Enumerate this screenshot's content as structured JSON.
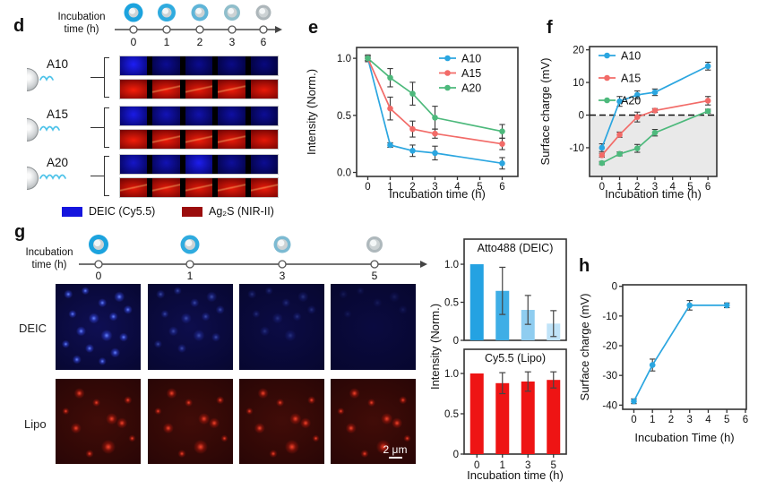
{
  "figure": {
    "panel_labels": {
      "d": "d",
      "e": "e",
      "f": "f",
      "g": "g",
      "h": "h"
    }
  },
  "panel_d": {
    "timeline_title_line1": "Incubation",
    "timeline_title_line2": "time (h)",
    "timeline_ticks": [
      "0",
      "1",
      "2",
      "3",
      "6"
    ],
    "groups": [
      "A10",
      "A15",
      "A20"
    ],
    "legend": [
      {
        "label": "DEIC (Cy5.5)",
        "color": "#1515DE"
      },
      {
        "label": "Ag₂S (NIR-II)",
        "color": "#9B0D0D"
      }
    ]
  },
  "panel_g": {
    "timeline_title_line1": "Incubation",
    "timeline_title_line2": "time (h)",
    "timeline_ticks": [
      "0",
      "1",
      "3",
      "5"
    ],
    "row_labels": [
      "DEIC",
      "Lipo"
    ],
    "scale_bar": "2 μm"
  },
  "chart_data": [
    {
      "id": "e",
      "type": "line",
      "xlabel": "Incubation time (h)",
      "ylabel": "Intensity (Norm.)",
      "x": [
        0,
        1,
        2,
        3,
        6
      ],
      "xticks": [
        0,
        1,
        2,
        3,
        4,
        5,
        6
      ],
      "xlim": [
        -0.5,
        6.7
      ],
      "ylim": [
        -0.035,
        1.095
      ],
      "yticks": [
        0,
        0.5,
        1
      ],
      "ytick_labels": [
        "0.0",
        "0.5",
        "1.0"
      ],
      "legend_position": "top-right",
      "series": [
        {
          "name": "A10",
          "color": "#2BA6E0",
          "values": [
            1.0,
            0.24,
            0.19,
            0.17,
            0.08
          ],
          "errors": [
            0.03,
            0.02,
            0.05,
            0.06,
            0.05
          ]
        },
        {
          "name": "A15",
          "color": "#F26B68",
          "values": [
            1.0,
            0.56,
            0.38,
            0.34,
            0.25
          ],
          "errors": [
            0.02,
            0.1,
            0.07,
            0.04,
            0.05
          ]
        },
        {
          "name": "A20",
          "color": "#4DB97C",
          "values": [
            1.0,
            0.83,
            0.69,
            0.48,
            0.36
          ],
          "errors": [
            0.02,
            0.08,
            0.1,
            0.1,
            0.06
          ]
        }
      ]
    },
    {
      "id": "f",
      "type": "line",
      "xlabel": "Incubation time (h)",
      "ylabel": "Surface charge (mV)",
      "x": [
        0,
        1,
        2,
        3,
        6
      ],
      "xticks": [
        0,
        1,
        2,
        3,
        4,
        5,
        6
      ],
      "xlim": [
        -0.7,
        6.5
      ],
      "ylim": [
        -18.8,
        21
      ],
      "yticks": [
        -10,
        0,
        10,
        20
      ],
      "zero_line": true,
      "shade_below_zero": "#E9E9E9",
      "legend_position": "top-left",
      "series": [
        {
          "name": "A10",
          "color": "#2BA6E0",
          "values": [
            -10,
            4.2,
            6.2,
            7.0,
            15.0
          ],
          "errors": [
            1.2,
            1.5,
            1.2,
            1.0,
            1.2
          ]
        },
        {
          "name": "A15",
          "color": "#F26B68",
          "values": [
            -12.3,
            -6.0,
            -0.6,
            1.4,
            4.4
          ],
          "errors": [
            0.6,
            0.8,
            1.5,
            0.6,
            1.3
          ]
        },
        {
          "name": "A20",
          "color": "#4DB97C",
          "values": [
            -14.7,
            -11.9,
            -10.2,
            -5.4,
            1.2
          ],
          "errors": [
            0.5,
            0.6,
            1.2,
            1.0,
            0.6
          ]
        }
      ]
    },
    {
      "id": "atto",
      "type": "bar",
      "title": "Atto488 (DEIC)",
      "ylabel": "Intensity (Norm.)",
      "categories": [
        "0",
        "1",
        "3",
        "5"
      ],
      "values": [
        1.0,
        0.65,
        0.4,
        0.22
      ],
      "errors": [
        0,
        0.31,
        0.19,
        0.17
      ],
      "bar_colors": [
        "#24A2E2",
        "#3FAEE6",
        "#8FCDF0",
        "#C0E3F8"
      ],
      "ylim": [
        0,
        1.33
      ],
      "yticks": [
        0,
        0.5,
        1
      ],
      "ytick_labels": [
        "0",
        "0.5",
        "1.0"
      ]
    },
    {
      "id": "cy",
      "type": "bar",
      "title": "Cy5.5 (Lipo)",
      "xlabel": "Incubation time (h)",
      "categories": [
        "0",
        "1",
        "3",
        "5"
      ],
      "values": [
        1.0,
        0.88,
        0.9,
        0.92
      ],
      "errors": [
        0,
        0.13,
        0.12,
        0.1
      ],
      "bar_colors": [
        "#EE1414",
        "#EE1414",
        "#EE1414",
        "#EE1414"
      ],
      "ylim": [
        0,
        1.3
      ],
      "yticks": [
        0,
        0.5,
        1
      ],
      "ytick_labels": [
        "0",
        "0.5",
        "1.0"
      ]
    },
    {
      "id": "h",
      "type": "line",
      "xlabel": "Incubation Time (h)",
      "ylabel": "Surface charge (mV)",
      "x": [
        0,
        1,
        3,
        5
      ],
      "xticks": [
        0,
        1,
        2,
        3,
        4,
        5,
        6
      ],
      "xlim": [
        -0.6,
        6.05
      ],
      "ylim": [
        -41.4,
        0.5
      ],
      "yticks": [
        0,
        -10,
        -20,
        -30,
        -40
      ],
      "series": [
        {
          "name": "",
          "color": "#2BA6E0",
          "values": [
            -38.7,
            -26.5,
            -6.4,
            -6.4
          ],
          "errors": [
            0.8,
            2.0,
            1.6,
            0.8
          ]
        }
      ]
    }
  ]
}
